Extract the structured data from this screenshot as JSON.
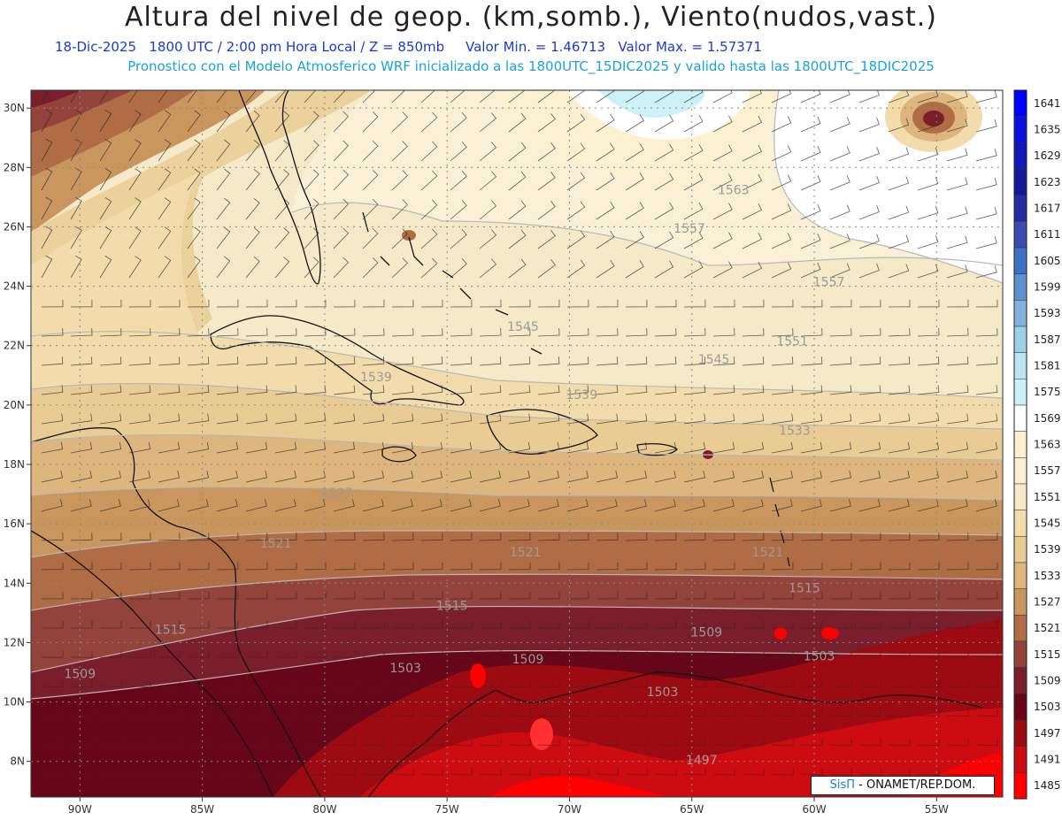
{
  "title": "Altura del nivel de geop. (km,somb.), Viento(nudos,vast.)",
  "subtitle_line1": "18-Dic-2025   1800 UTC / 2:00 pm Hora Local / Z = 850mb     Valor Min. = 1.46713   Valor Max. = 1.57371",
  "subtitle_line2": "Pronostico con el Modelo Atmosferico WRF inicializado a las 1800UTC_15DIC2025 y valido hasta las  1800UTC_18DIC2025",
  "map": {
    "lon_range": [
      -92,
      -52.3
    ],
    "lat_range": [
      6.8,
      30.6
    ],
    "lon_ticks": [
      {
        "v": -90,
        "label": "90W"
      },
      {
        "v": -85,
        "label": "85W"
      },
      {
        "v": -80,
        "label": "80W"
      },
      {
        "v": -75,
        "label": "75W"
      },
      {
        "v": -70,
        "label": "70W"
      },
      {
        "v": -65,
        "label": "65W"
      },
      {
        "v": -60,
        "label": "60W"
      },
      {
        "v": -55,
        "label": "55W"
      }
    ],
    "lat_ticks": [
      {
        "v": 8,
        "label": "8N"
      },
      {
        "v": 10,
        "label": "10N"
      },
      {
        "v": 12,
        "label": "12N"
      },
      {
        "v": 14,
        "label": "14N"
      },
      {
        "v": 16,
        "label": "16N"
      },
      {
        "v": 18,
        "label": "18N"
      },
      {
        "v": 20,
        "label": "20N"
      },
      {
        "v": 22,
        "label": "22N"
      },
      {
        "v": 24,
        "label": "24N"
      },
      {
        "v": 26,
        "label": "26N"
      },
      {
        "v": 28,
        "label": "28N"
      },
      {
        "v": 30,
        "label": "30N"
      }
    ],
    "contour_labels": [
      {
        "text": "1563",
        "lon": -63.3,
        "lat": 27.1
      },
      {
        "text": "1557",
        "lon": -65.1,
        "lat": 25.8
      },
      {
        "text": "1557",
        "lon": -59.4,
        "lat": 24.0
      },
      {
        "text": "1551",
        "lon": -60.9,
        "lat": 22.0
      },
      {
        "text": "1545",
        "lon": -71.9,
        "lat": 22.5
      },
      {
        "text": "1545",
        "lon": -64.1,
        "lat": 21.4
      },
      {
        "text": "1539",
        "lon": -77.9,
        "lat": 20.8
      },
      {
        "text": "1539",
        "lon": -69.5,
        "lat": 20.2
      },
      {
        "text": "1533",
        "lon": -60.8,
        "lat": 19.0
      },
      {
        "text": "1527",
        "lon": -79.5,
        "lat": 16.9
      },
      {
        "text": "1521",
        "lon": -82.0,
        "lat": 15.2
      },
      {
        "text": "1521",
        "lon": -71.8,
        "lat": 14.9
      },
      {
        "text": "1521",
        "lon": -61.9,
        "lat": 14.9
      },
      {
        "text": "1515",
        "lon": -74.8,
        "lat": 13.1
      },
      {
        "text": "1515",
        "lon": -60.4,
        "lat": 13.7
      },
      {
        "text": "1515",
        "lon": -86.3,
        "lat": 12.3
      },
      {
        "text": "1509",
        "lon": -71.7,
        "lat": 11.3
      },
      {
        "text": "1509",
        "lon": -64.4,
        "lat": 12.2
      },
      {
        "text": "1509",
        "lon": -90.0,
        "lat": 10.8
      },
      {
        "text": "1503",
        "lon": -76.7,
        "lat": 11.0
      },
      {
        "text": "1503",
        "lon": -59.8,
        "lat": 11.4
      },
      {
        "text": "1503",
        "lon": -66.2,
        "lat": 10.2
      },
      {
        "text": "1497",
        "lon": -64.6,
        "lat": 7.9
      }
    ]
  },
  "colorbar": {
    "levels": [
      {
        "label": "1641",
        "color": "#0000ff"
      },
      {
        "label": "1635",
        "color": "#0a10dd"
      },
      {
        "label": "1629",
        "color": "#1118b8"
      },
      {
        "label": "1623",
        "color": "#141a96"
      },
      {
        "label": "1617",
        "color": "#262b9e"
      },
      {
        "label": "1611",
        "color": "#3a4cb2"
      },
      {
        "label": "1605",
        "color": "#3e70c3"
      },
      {
        "label": "1599",
        "color": "#5c93cf"
      },
      {
        "label": "1593",
        "color": "#84b2dc"
      },
      {
        "label": "1587",
        "color": "#9ccfe8"
      },
      {
        "label": "1581",
        "color": "#bce4f2"
      },
      {
        "label": "1575",
        "color": "#ccf2f8"
      },
      {
        "label": "1569",
        "color": "#ffffff"
      },
      {
        "label": "1563",
        "color": "#fbf1d0"
      },
      {
        "label": "1557",
        "color": "#f9f0d6"
      },
      {
        "label": "1551",
        "color": "#f6e9c8"
      },
      {
        "label": "1545",
        "color": "#f2dcac"
      },
      {
        "label": "1539",
        "color": "#e9cc93"
      },
      {
        "label": "1533",
        "color": "#ddb57d"
      },
      {
        "label": "1527",
        "color": "#c9975e"
      },
      {
        "label": "1521",
        "color": "#b06d45"
      },
      {
        "label": "1515",
        "color": "#94433a"
      },
      {
        "label": "1509",
        "color": "#7a1e2c"
      },
      {
        "label": "1503",
        "color": "#660618"
      },
      {
        "label": "1497",
        "color": "#9c0a12"
      },
      {
        "label": "1491",
        "color": "#cc0c10"
      },
      {
        "label": "1485",
        "color": "#ff0000"
      }
    ]
  },
  "credit": {
    "brand": "SisΠ",
    "org": " - ONAMET/REP.DOM."
  }
}
